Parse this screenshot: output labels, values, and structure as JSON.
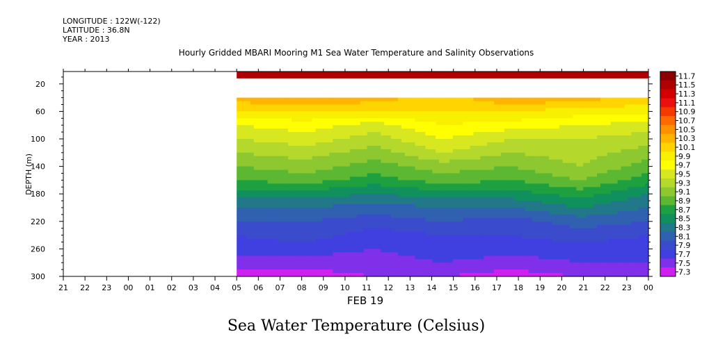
{
  "header": {
    "longitude": "LONGITUDE : 122W(-122)",
    "latitude": "LATITUDE : 36.8N",
    "year": "YEAR : 2013"
  },
  "chart_data": {
    "type": "heatmap",
    "title": "Hourly Gridded MBARI Mooring M1 Sea Water Temperature and Salinity Observations",
    "xlabel": "FEB 19",
    "ylabel": "DEPTH (m)",
    "caption": "Sea Water Temperature (Celsius)",
    "x_ticks": [
      "21",
      "22",
      "23",
      "00",
      "01",
      "02",
      "03",
      "04",
      "05",
      "06",
      "07",
      "08",
      "09",
      "10",
      "11",
      "12",
      "13",
      "14",
      "15",
      "16",
      "17",
      "18",
      "19",
      "20",
      "21",
      "22",
      "23",
      "00"
    ],
    "y_ticks": [
      20,
      60,
      100,
      140,
      180,
      220,
      260,
      300
    ],
    "ylim": [
      300,
      2
    ],
    "data_start_hour_index": 8,
    "colorbar_levels": [
      "11.7",
      "11.5",
      "11.3",
      "11.1",
      "10.9",
      "10.7",
      "10.5",
      "10.3",
      "10.1",
      "9.9",
      "9.7",
      "9.5",
      "9.3",
      "9.1",
      "8.9",
      "8.7",
      "8.5",
      "8.3",
      "8.1",
      "7.9",
      "7.7",
      "7.5",
      "7.3"
    ],
    "colorbar_colors": [
      "#8b0000",
      "#b00000",
      "#d40000",
      "#ea1010",
      "#f53a00",
      "#ff6a00",
      "#ff9000",
      "#ffb400",
      "#ffd400",
      "#f8f000",
      "#ffff00",
      "#d8e820",
      "#b4d82c",
      "#8ec830",
      "#5cb832",
      "#1fa040",
      "#10905c",
      "#207888",
      "#3060b0",
      "#3a4ccc",
      "#4040e0",
      "#8030e8",
      "#d020f0"
    ],
    "surface_band": {
      "depth_top": 2,
      "depth_bottom": 12,
      "temperature": 11.6
    },
    "depths": [
      40,
      60,
      80,
      100,
      120,
      140,
      160,
      180,
      200,
      220,
      240,
      260,
      280,
      300
    ],
    "profiles": [
      {
        "hour": "05",
        "temps": [
          10.4,
          10.1,
          9.7,
          9.5,
          9.3,
          9.1,
          8.9,
          8.6,
          8.3,
          8.1,
          7.9,
          7.8,
          7.6,
          7.4
        ]
      },
      {
        "hour": "08",
        "temps": [
          10.5,
          10.1,
          9.8,
          9.6,
          9.4,
          9.2,
          9.0,
          8.6,
          8.3,
          8.1,
          8.0,
          7.8,
          7.6,
          7.4
        ]
      },
      {
        "hour": "11",
        "temps": [
          10.4,
          10.1,
          9.6,
          9.4,
          9.2,
          9.0,
          8.8,
          8.5,
          8.2,
          8.0,
          7.8,
          7.7,
          7.6,
          7.5
        ]
      },
      {
        "hour": "14",
        "temps": [
          10.2,
          10.1,
          9.9,
          9.7,
          9.5,
          9.2,
          9.0,
          8.6,
          8.3,
          8.1,
          7.9,
          7.8,
          7.7,
          7.5
        ]
      },
      {
        "hour": "17",
        "temps": [
          10.5,
          10.1,
          9.8,
          9.5,
          9.3,
          9.1,
          8.9,
          8.6,
          8.3,
          8.0,
          7.9,
          7.8,
          7.6,
          7.4
        ]
      },
      {
        "hour": "21",
        "temps": [
          10.4,
          10.0,
          9.7,
          9.5,
          9.4,
          9.3,
          9.1,
          8.8,
          8.5,
          8.2,
          8.0,
          7.8,
          7.7,
          7.5
        ]
      },
      {
        "hour": "00",
        "temps": [
          10.2,
          10.0,
          9.6,
          9.4,
          9.2,
          9.0,
          8.8,
          8.5,
          8.3,
          8.1,
          7.9,
          7.8,
          7.7,
          7.5
        ]
      }
    ],
    "grid": false,
    "legend": "right"
  }
}
